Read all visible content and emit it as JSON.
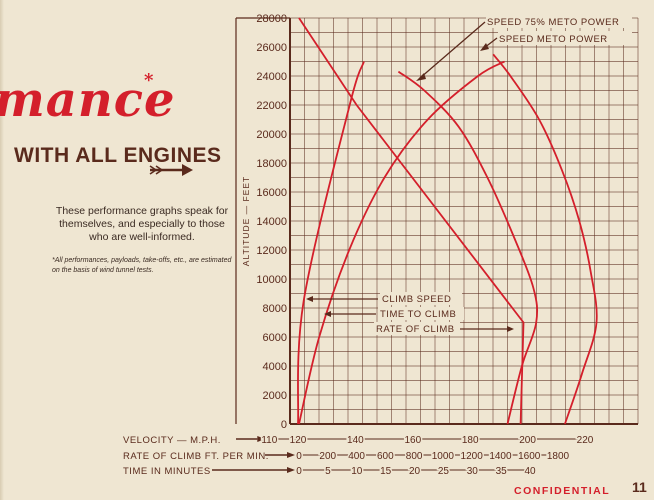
{
  "page": {
    "title_word": "mance",
    "title_star": "*",
    "subtitle": "WITH ALL ENGINES",
    "intro_text": "These performance graphs speak for themselves, and especially to those who are well-informed.",
    "note_text": "*All performances, payloads, take-offs, etc., are estimated on the basis of wind tunnel tests.",
    "footer_label": "CONFIDENTIAL",
    "page_number": "11",
    "icons": [
      "right-arrow-icon"
    ],
    "colors": {
      "curve": "#d41f2b",
      "grid": "#5a2a1c",
      "background": "#efe6d2"
    }
  },
  "chart_data": {
    "type": "line",
    "ylabel": "ALTITUDE — FEET",
    "ylim": [
      0,
      28000
    ],
    "y_ticks": [
      "0",
      "2000",
      "4000",
      "6000",
      "8000",
      "10000",
      "12000",
      "14000",
      "16000",
      "18000",
      "20000",
      "22000",
      "24000",
      "26000",
      "28000"
    ],
    "grid": true,
    "x_scales": [
      {
        "label": "VELOCITY — M.P.H.",
        "ticks": [
          "110",
          "120",
          "140",
          "160",
          "180",
          "200",
          "220"
        ],
        "tick_values": [
          110,
          120,
          140,
          160,
          180,
          200,
          220
        ]
      },
      {
        "label": "RATE OF CLIMB FT. PER MIN.",
        "ticks": [
          "0",
          "200",
          "400",
          "600",
          "800",
          "1000",
          "1200",
          "1400",
          "1600",
          "1800"
        ],
        "tick_values": [
          0,
          200,
          400,
          600,
          800,
          1000,
          1200,
          1400,
          1600,
          1800
        ]
      },
      {
        "label": "TIME IN MINUTES",
        "ticks": [
          "0",
          "5",
          "10",
          "15",
          "20",
          "25",
          "30",
          "35",
          "40"
        ],
        "tick_values": [
          0,
          5,
          10,
          15,
          20,
          25,
          30,
          35,
          40
        ]
      }
    ],
    "series": [
      {
        "name": "SPEED 75% METO POWER",
        "scale": "VELOCITY — M.P.H.",
        "points": [
          [
            193,
            0
          ],
          [
            198,
            4000
          ],
          [
            203,
            7000
          ],
          [
            202,
            9400
          ],
          [
            195,
            13000
          ],
          [
            186,
            17000
          ],
          [
            176,
            20500
          ],
          [
            164,
            23000
          ],
          [
            155,
            24300
          ]
        ]
      },
      {
        "name": "SPEED METO POWER",
        "scale": "VELOCITY — M.P.H.",
        "points": [
          [
            213,
            0
          ],
          [
            219,
            3500
          ],
          [
            224,
            7000
          ],
          [
            222,
            10500
          ],
          [
            218,
            14000
          ],
          [
            212,
            17500
          ],
          [
            204,
            21000
          ],
          [
            194,
            24000
          ],
          [
            188,
            25500
          ]
        ]
      },
      {
        "name": "CLIMB SPEED",
        "scale": "VELOCITY — M.P.H.",
        "points": [
          [
            120,
            0
          ],
          [
            122,
            8500
          ],
          [
            138,
            22000
          ],
          [
            143,
            25000
          ]
        ]
      },
      {
        "name": "TIME TO CLIMB",
        "scale": "TIME IN MINUTES",
        "points": [
          [
            0,
            0
          ],
          [
            3.5,
            6000
          ],
          [
            8.7,
            12000
          ],
          [
            14.8,
            17000
          ],
          [
            22.3,
            21000
          ],
          [
            31,
            24000
          ],
          [
            35.6,
            25000
          ]
        ]
      },
      {
        "name": "RATE OF CLIMB",
        "scale": "RATE OF CLIMB FT. PER MIN.",
        "points": [
          [
            1540,
            0
          ],
          [
            1560,
            7000
          ],
          [
            400,
            22000
          ],
          [
            0,
            28000
          ]
        ]
      }
    ],
    "annotations": [
      "SPEED 75% METO POWER",
      "SPEED METO POWER",
      "CLIMB SPEED",
      "TIME TO CLIMB",
      "RATE OF CLIMB"
    ]
  }
}
